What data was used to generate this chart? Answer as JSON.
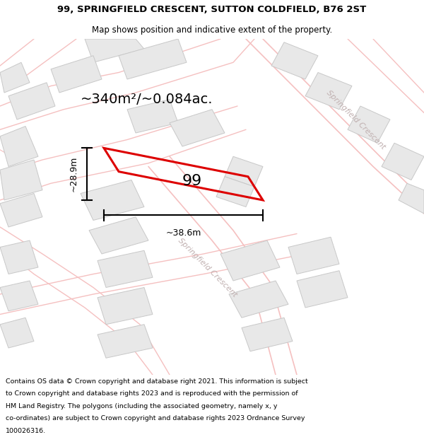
{
  "title_line1": "99, SPRINGFIELD CRESCENT, SUTTON COLDFIELD, B76 2ST",
  "title_line2": "Map shows position and indicative extent of the property.",
  "footer_lines": [
    "Contains OS data © Crown copyright and database right 2021. This information is subject",
    "to Crown copyright and database rights 2023 and is reproduced with the permission of",
    "HM Land Registry. The polygons (including the associated geometry, namely x, y",
    "co-ordinates) are subject to Crown copyright and database rights 2023 Ordnance Survey",
    "100026316."
  ],
  "area_label": "~340m²/~0.084ac.",
  "width_label": "~38.6m",
  "height_label": "~28.9m",
  "plot_number": "99",
  "bg_color": "#ffffff",
  "map_bg": "#ffffff",
  "road_color": "#f5c0c0",
  "building_fill": "#e8e8e8",
  "building_stroke": "#c8c8c8",
  "plot_color": "#dd0000",
  "street_label_color": "#c0b0b0",
  "title_fontsize": 9.5,
  "subtitle_fontsize": 8.5,
  "area_fontsize": 14,
  "dim_fontsize": 9,
  "plot_label_fontsize": 16,
  "street_fontsize": 8,
  "footer_fontsize": 6.8
}
